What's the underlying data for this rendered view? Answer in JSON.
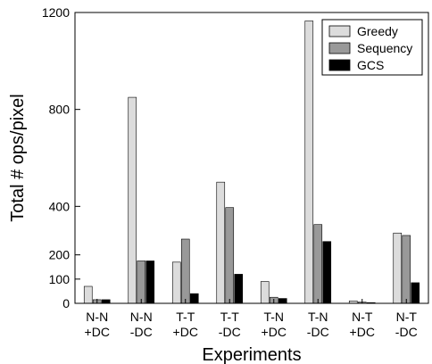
{
  "chart_data": {
    "type": "bar",
    "title": "",
    "xlabel": "Experiments",
    "ylabel": "Total # ops/pixel",
    "ylim": [
      0,
      1200
    ],
    "yticks": [
      0,
      100,
      200,
      400,
      800,
      1200
    ],
    "grid": false,
    "legend_position": "top-right",
    "categories": [
      [
        "N-N",
        "+DC"
      ],
      [
        "N-N",
        "-DC"
      ],
      [
        "T-T",
        "+DC"
      ],
      [
        "T-T",
        "-DC"
      ],
      [
        "T-N",
        "+DC"
      ],
      [
        "T-N",
        "-DC"
      ],
      [
        "N-T",
        "+DC"
      ],
      [
        "N-T",
        "-DC"
      ]
    ],
    "series": [
      {
        "name": "Greedy",
        "color": "#dcdcdc",
        "values": [
          70,
          850,
          170,
          500,
          90,
          1165,
          10,
          290
        ]
      },
      {
        "name": "Sequency",
        "color": "#999999",
        "values": [
          15,
          175,
          265,
          395,
          25,
          325,
          5,
          280
        ]
      },
      {
        "name": "GCS",
        "color": "#000000",
        "values": [
          15,
          175,
          40,
          120,
          20,
          255,
          3,
          85
        ]
      }
    ]
  }
}
